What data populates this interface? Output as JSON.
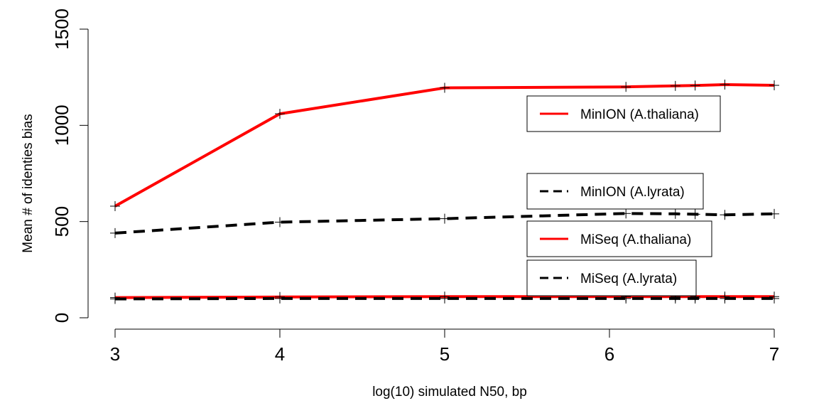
{
  "chart_data": {
    "type": "line",
    "xlabel": "log(10) simulated N50, bp",
    "ylabel": "Mean # of identies bias",
    "xlim": [
      3,
      7
    ],
    "ylim": [
      0,
      1500
    ],
    "xticks": [
      "3",
      "4",
      "5",
      "6",
      "7"
    ],
    "yticks": [
      "0",
      "500",
      "1000",
      "1500"
    ],
    "x": [
      3,
      4,
      5,
      6.1,
      6.4,
      6.52,
      6.7,
      7
    ],
    "series": [
      {
        "name": "MinION (A.thaliana)",
        "color": "#ff0000",
        "dash": "solid",
        "values": [
          580,
          1060,
          1195,
          1200,
          1205,
          1207,
          1212,
          1208
        ]
      },
      {
        "name": "MinION (A.lyrata)",
        "color": "#000000",
        "dash": "dashed",
        "values": [
          440,
          497,
          515,
          542,
          540,
          538,
          535,
          540
        ]
      },
      {
        "name": "MiSeq (A.thaliana)",
        "color": "#ff0000",
        "dash": "solid",
        "values": [
          105,
          108,
          110,
          110,
          110,
          110,
          110,
          110
        ]
      },
      {
        "name": "MiSeq (A.lyrata)",
        "color": "#000000",
        "dash": "dashed",
        "values": [
          98,
          100,
          100,
          100,
          100,
          100,
          100,
          100
        ]
      }
    ],
    "legend": "right, stacked",
    "grid": false
  }
}
